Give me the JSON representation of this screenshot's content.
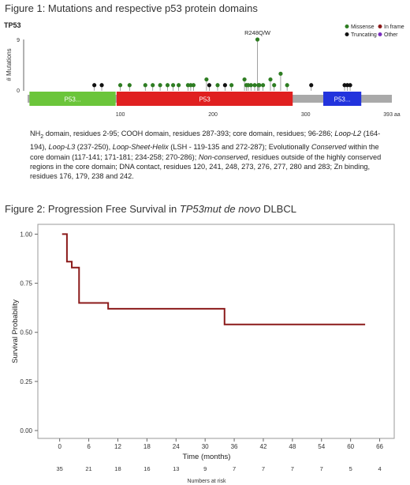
{
  "figure1": {
    "title": "Figure 1: Mutations and respective p53 protein domains",
    "gene": "TP53",
    "ylabel": "# Mutations",
    "y_ticks": [
      "9",
      "0"
    ],
    "hotspot_label": "R248Q/W",
    "x_ticks": [
      "100",
      "200",
      "300",
      "393 aa"
    ],
    "domains": [
      {
        "label": "P53...",
        "start": 2,
        "end": 95,
        "color": "#6bc53a"
      },
      {
        "label": "P53",
        "start": 96,
        "end": 286,
        "color": "#e02020"
      },
      {
        "label": "P53...",
        "start": 319,
        "end": 360,
        "color": "#2233dd"
      }
    ],
    "legend": [
      {
        "label": "Missense",
        "color": "#2e7d22"
      },
      {
        "label": "In frame",
        "color": "#8b1a1a"
      },
      {
        "label": "Truncating",
        "color": "#111111"
      },
      {
        "label": "Other",
        "color": "#7b2fbe"
      }
    ],
    "chart_data": {
      "type": "lollipop",
      "x_range": [
        0,
        393
      ],
      "y_range": [
        0,
        9
      ],
      "mutations": [
        {
          "pos": 72,
          "count": 1,
          "type": "Truncating"
        },
        {
          "pos": 80,
          "count": 1,
          "type": "Truncating"
        },
        {
          "pos": 100,
          "count": 1,
          "type": "Missense"
        },
        {
          "pos": 110,
          "count": 1,
          "type": "Missense"
        },
        {
          "pos": 127,
          "count": 1,
          "type": "Missense"
        },
        {
          "pos": 135,
          "count": 1,
          "type": "Missense"
        },
        {
          "pos": 143,
          "count": 1,
          "type": "Missense"
        },
        {
          "pos": 151,
          "count": 1,
          "type": "Missense"
        },
        {
          "pos": 157,
          "count": 1,
          "type": "Missense"
        },
        {
          "pos": 163,
          "count": 1,
          "type": "Missense"
        },
        {
          "pos": 173,
          "count": 1,
          "type": "Missense"
        },
        {
          "pos": 176,
          "count": 1,
          "type": "Missense"
        },
        {
          "pos": 179,
          "count": 1,
          "type": "Missense"
        },
        {
          "pos": 193,
          "count": 2,
          "type": "Missense"
        },
        {
          "pos": 196,
          "count": 1,
          "type": "Truncating"
        },
        {
          "pos": 205,
          "count": 1,
          "type": "Missense"
        },
        {
          "pos": 213,
          "count": 1,
          "type": "Truncating"
        },
        {
          "pos": 220,
          "count": 1,
          "type": "Missense"
        },
        {
          "pos": 234,
          "count": 2,
          "type": "Missense"
        },
        {
          "pos": 236,
          "count": 1,
          "type": "Missense"
        },
        {
          "pos": 238,
          "count": 1,
          "type": "Missense"
        },
        {
          "pos": 241,
          "count": 1,
          "type": "Missense"
        },
        {
          "pos": 245,
          "count": 1,
          "type": "Missense"
        },
        {
          "pos": 248,
          "count": 9,
          "type": "Missense"
        },
        {
          "pos": 249,
          "count": 1,
          "type": "Missense"
        },
        {
          "pos": 250,
          "count": 1,
          "type": "Missense"
        },
        {
          "pos": 254,
          "count": 1,
          "type": "Missense"
        },
        {
          "pos": 262,
          "count": 2,
          "type": "Missense"
        },
        {
          "pos": 266,
          "count": 1,
          "type": "Missense"
        },
        {
          "pos": 273,
          "count": 3,
          "type": "Missense"
        },
        {
          "pos": 280,
          "count": 1,
          "type": "Missense"
        },
        {
          "pos": 306,
          "count": 1,
          "type": "Truncating"
        },
        {
          "pos": 342,
          "count": 1,
          "type": "Truncating"
        },
        {
          "pos": 345,
          "count": 1,
          "type": "Truncating"
        },
        {
          "pos": 348,
          "count": 1,
          "type": "Truncating"
        }
      ]
    }
  },
  "caption": {
    "nh2_prefix": "NH",
    "nh2_sub": "2",
    "p1": " domain, residues 2-95; COOH domain, residues 287-393; core domain, residues; 96-286; ",
    "loop_l2": "Loop-L2",
    "p2": " (164-194), ",
    "loop_l3": "Loop-L3",
    "p3": " (237-250), ",
    "lsh": "Loop-Sheet-Helix",
    "p4": " (LSH - 119-135 and 272-287); Evolutionally ",
    "conserved": "Conserved",
    "p5": " within the core domain (117-141; 171-181; 234-258; 270-286); ",
    "nonconserved": "Non-conserved",
    "p6": ", residues outside of the highly conserved regions in the core domain; DNA contact, residues 120, 241, 248, 273, 276, 277, 280 and 283; Zn binding, residues 176, 179, 238 and 242."
  },
  "figure2": {
    "title_pre": "Figure 2: Progression Free Survival in ",
    "title_italic": "TP53mut de novo",
    "title_post": " DLBCL",
    "chart_data": {
      "type": "line",
      "step": true,
      "xlabel": "Time (months)",
      "ylabel": "Survival Probability",
      "x_ticks": [
        0,
        6,
        12,
        18,
        24,
        30,
        36,
        42,
        48,
        54,
        60,
        66
      ],
      "y_ticks": [
        0.0,
        0.25,
        0.5,
        0.75,
        1.0
      ],
      "x_range": [
        -4.5,
        69
      ],
      "y_range": [
        -0.04,
        1.05
      ],
      "line_color": "#8b1a1a",
      "series": [
        {
          "x": [
            0.5,
            1.5,
            2.5,
            4,
            10,
            34,
            63
          ],
          "y": [
            1.0,
            0.86,
            0.83,
            0.65,
            0.62,
            0.54,
            0.54
          ]
        }
      ]
    },
    "risk_table": {
      "label": "Numbers at risk",
      "values": [
        "35",
        "21",
        "18",
        "16",
        "13",
        "9",
        "7",
        "7",
        "7",
        "7",
        "5",
        "4"
      ]
    }
  }
}
